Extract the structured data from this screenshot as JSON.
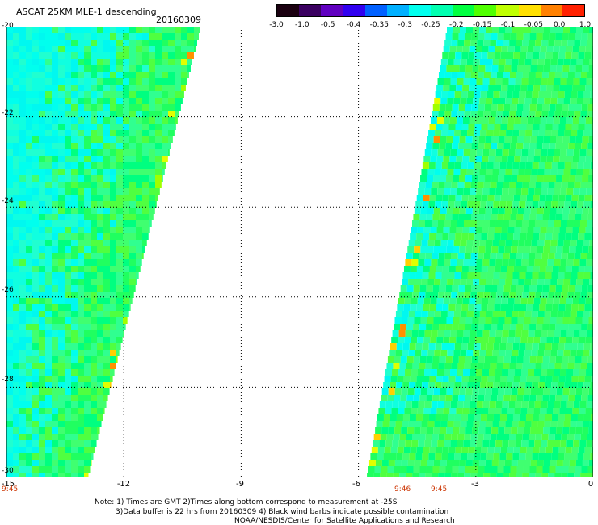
{
  "header": {
    "title": "ASCAT 25KM MLE-1 descending",
    "date": "20160309"
  },
  "colorbar": {
    "labels": [
      "-3.0",
      "-1.0",
      "-0.5",
      "-0.4",
      "-0.35",
      "-0.3",
      "-0.25",
      "-0.2",
      "-0.15",
      "-0.1",
      "-0.05",
      "0.0",
      "1.0"
    ],
    "colors": [
      "#1a0010",
      "#3a0060",
      "#6000c0",
      "#3000f0",
      "#0060ff",
      "#00b0ff",
      "#00ffee",
      "#00ffb0",
      "#00ff40",
      "#50ff00",
      "#c0ff00",
      "#ffe000",
      "#ff8000",
      "#ff2000"
    ]
  },
  "axes": {
    "y_ticks": [
      "-20",
      "-22",
      "-24",
      "-26",
      "-28",
      "-30"
    ],
    "x_ticks": [
      "-15",
      "-12",
      "-9",
      "-6",
      "-3",
      "0"
    ],
    "lon_range": [
      -15,
      0
    ],
    "lat_range": [
      -20,
      -30
    ]
  },
  "times": {
    "left": "9:45",
    "mid1": "9:46",
    "mid2": "9:45"
  },
  "footer": {
    "line1": "Note: 1) Times are GMT 2)Times along bottom correspond to measurement at -25S",
    "line2": "3)Data buffer is 22 hrs from 20160309 4) Black wind barbs indicate possible contamination",
    "line3": "NOAA/NESDIS/Center for Satellite Applications and Research"
  }
}
